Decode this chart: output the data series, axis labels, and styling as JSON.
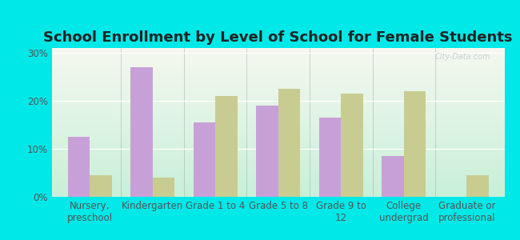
{
  "title": "School Enrollment by Level of School for Female Students",
  "categories": [
    "Nursery,\npreschool",
    "Kindergarten",
    "Grade 1 to 4",
    "Grade 5 to 8",
    "Grade 9 to\n12",
    "College\nundergrad",
    "Graduate or\nprofessional"
  ],
  "payette": [
    12.5,
    27.0,
    15.5,
    19.0,
    16.5,
    8.5,
    0.0
  ],
  "idaho": [
    4.5,
    4.0,
    21.0,
    22.5,
    21.5,
    22.0,
    4.5
  ],
  "payette_color": "#c8a0d8",
  "idaho_color": "#c8cc90",
  "background_outer": "#00e8e8",
  "background_plot_top": "#f5f8f0",
  "background_plot_bottom": "#c8f0d8",
  "yticks": [
    0,
    10,
    20,
    30
  ],
  "ylim": [
    0,
    31
  ],
  "bar_width": 0.35,
  "title_fontsize": 13,
  "tick_fontsize": 8.5,
  "legend_fontsize": 9,
  "watermark": "City-Data.com"
}
